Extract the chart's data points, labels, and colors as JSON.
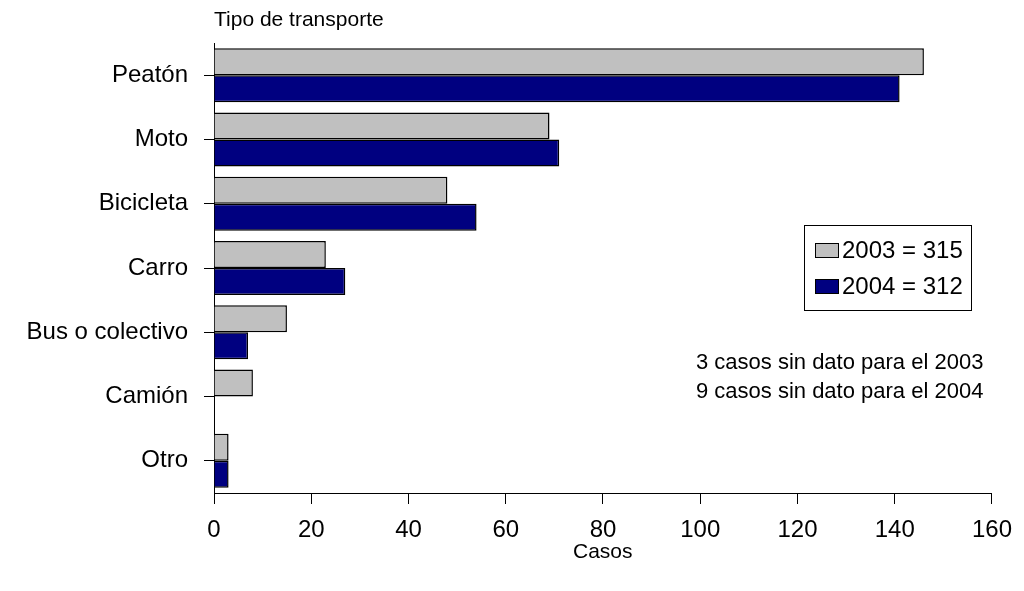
{
  "chart_data": {
    "type": "bar",
    "orientation": "horizontal",
    "ylabel": "Tipo de transporte",
    "xlabel": "Casos",
    "categories": [
      "Peatón",
      "Moto",
      "Bicicleta",
      "Carro",
      "Bus o colectivo",
      "Camión",
      "Otro"
    ],
    "series": [
      {
        "name": "2003 = 315",
        "color": "#c0c0c0",
        "values": [
          146,
          69,
          48,
          23,
          15,
          8,
          3
        ]
      },
      {
        "name": "2004 = 312",
        "color": "#000080",
        "values": [
          141,
          71,
          54,
          27,
          7,
          0,
          3
        ]
      }
    ],
    "xlim": [
      0,
      160
    ],
    "xticks": [
      0,
      20,
      40,
      60,
      80,
      100,
      120,
      140,
      160
    ],
    "grid": false,
    "legend": "right",
    "annotations": [
      "3 casos sin dato para el 2003",
      "9 casos sin dato para el 2004"
    ]
  }
}
